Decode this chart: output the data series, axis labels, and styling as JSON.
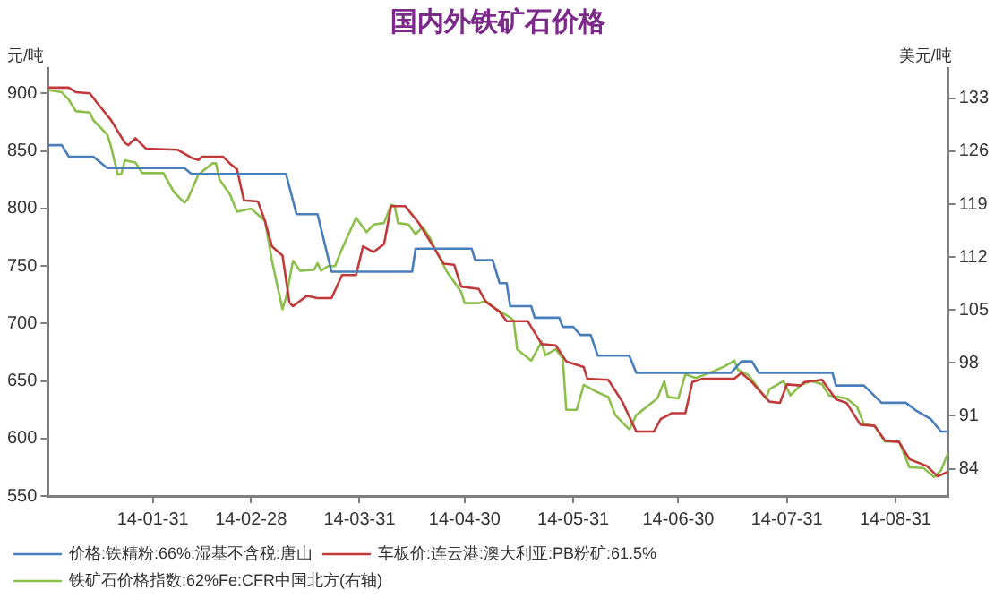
{
  "chart_data": {
    "type": "line",
    "title": "国内外铁矿石价格",
    "ylabel": "元/吨",
    "y2label": "美元/吨",
    "xlim": [
      "--01-01",
      "--09-15"
    ],
    "xticks": [
      {
        "value": "--01-31",
        "label": "14-01-31"
      },
      {
        "value": "--02-28",
        "label": "14-02-28"
      },
      {
        "value": "--03-31",
        "label": "14-03-31"
      },
      {
        "value": "--04-30",
        "label": "14-04-30"
      },
      {
        "value": "--05-31",
        "label": "14-05-31"
      },
      {
        "value": "--06-30",
        "label": "14-06-30"
      },
      {
        "value": "--07-31",
        "label": "14-07-31"
      },
      {
        "value": "--08-31",
        "label": "14-08-31"
      }
    ],
    "ylim": [
      550,
      922
    ],
    "yticks": [
      550,
      600,
      650,
      700,
      750,
      800,
      850,
      900
    ],
    "y2lim": [
      80.4,
      137
    ],
    "y2ticks": [
      84,
      91,
      98,
      105,
      112,
      119,
      126,
      133
    ],
    "grid": false,
    "legend": "bottom",
    "marker": "none",
    "line_style": "solid",
    "series": [
      {
        "name": "价格:铁精粉:66%:湿基不含税:唐山",
        "color": "#4a7ebb",
        "x": [
          "--01-01",
          "--01-05",
          "--01-07",
          "--01-14",
          "--01-18",
          "--02-09",
          "--02-11",
          "--03-10",
          "--03-13",
          "--03-19",
          "--03-23",
          "--04-15",
          "--04-16",
          "--05-02",
          "--05-03",
          "--05-08",
          "--05-10",
          "--05-12",
          "--05-13",
          "--05-19",
          "--05-20",
          "--05-27",
          "--05-28",
          "--05-31",
          "--06-02",
          "--06-05",
          "--06-07",
          "--06-16",
          "--06-18",
          "--07-15",
          "--07-18",
          "--07-21",
          "--07-23",
          "--08-13",
          "--08-14",
          "--08-22",
          "--08-27",
          "--09-03",
          "--09-06",
          "--09-10",
          "--09-13",
          "--09-15"
        ],
        "values": [
          855,
          855,
          845,
          845,
          835,
          835,
          830,
          830,
          795,
          795,
          745,
          745,
          765,
          765,
          755,
          755,
          735,
          735,
          715,
          715,
          705,
          705,
          697,
          697,
          690,
          690,
          672,
          672,
          657,
          657,
          667,
          667,
          657,
          657,
          646,
          646,
          631,
          631,
          624,
          617,
          606,
          606
        ]
      },
      {
        "name": "车板价:连云港:澳大利亚:PB粉矿:61.5%",
        "color": "#c0393b",
        "x": [
          "--01-01",
          "--01-07",
          "--01-09",
          "--01-13",
          "--01-15",
          "--01-19",
          "--01-23",
          "--01-24",
          "--01-26",
          "--01-29",
          "--02-07",
          "--02-11",
          "--02-13",
          "--02-14",
          "--02-20",
          "--02-22",
          "--02-24",
          "--02-26",
          "--03-02",
          "--03-04",
          "--03-06",
          "--03-09",
          "--03-11",
          "--03-12",
          "--03-16",
          "--03-19",
          "--03-23",
          "--03-26",
          "--03-30",
          "--04-01",
          "--04-04",
          "--04-07",
          "--04-09",
          "--04-13",
          "--04-17",
          "--04-19",
          "--04-24",
          "--04-27",
          "--04-29",
          "--05-04",
          "--05-06",
          "--05-10",
          "--05-12",
          "--05-18",
          "--05-22",
          "--05-26",
          "--05-29",
          "--06-03",
          "--06-04",
          "--06-10",
          "--06-14",
          "--06-18",
          "--06-23",
          "--06-25",
          "--06-27",
          "--06-28",
          "--07-02",
          "--07-04",
          "--07-07",
          "--07-16",
          "--07-18",
          "--07-21",
          "--07-26",
          "--07-29",
          "--07-31",
          "--08-04",
          "--08-05",
          "--08-10",
          "--08-14",
          "--08-17",
          "--08-21",
          "--08-25",
          "--08-28",
          "--09-01",
          "--09-04",
          "--09-09",
          "--09-12",
          "--09-15"
        ],
        "values": [
          905,
          905,
          901,
          900,
          892,
          877,
          857,
          855,
          861,
          852,
          851,
          844,
          842,
          845,
          845,
          839,
          834,
          807,
          806,
          789,
          767,
          759,
          718,
          715,
          724,
          722,
          722,
          742,
          742,
          767,
          762,
          769,
          802,
          802,
          787,
          777,
          752,
          751,
          732,
          730,
          719,
          710,
          702,
          702,
          682,
          681,
          667,
          662,
          652,
          651,
          632,
          606,
          606,
          617,
          620,
          622,
          622,
          649,
          652,
          652,
          657,
          649,
          632,
          631,
          647,
          646,
          649,
          651,
          634,
          631,
          612,
          611,
          598,
          597,
          582,
          576,
          567,
          571
        ]
      },
      {
        "name": "铁矿石价格指数:62%Fe:CFR中国北方(右轴)",
        "color": "#8cbf4b",
        "axis": "y2",
        "x": [
          "--01-01",
          "--01-05",
          "--01-07",
          "--01-09",
          "--01-13",
          "--01-14",
          "--01-18",
          "--01-19",
          "--01-21",
          "--01-22",
          "--01-23",
          "--01-26",
          "--01-28",
          "--02-03",
          "--02-06",
          "--02-09",
          "--02-10",
          "--02-13",
          "--02-17",
          "--02-18",
          "--02-19",
          "--02-22",
          "--02-24",
          "--02-28",
          "--03-04",
          "--03-06",
          "--03-09",
          "--03-10",
          "--03-12",
          "--03-14",
          "--03-18",
          "--03-19",
          "--03-20",
          "--03-22",
          "--03-24",
          "--03-26",
          "--03-30",
          "--04-02",
          "--04-04",
          "--04-07",
          "--04-09",
          "--04-10",
          "--04-11",
          "--04-14",
          "--04-16",
          "--04-18",
          "--04-20",
          "--04-22",
          "--04-25",
          "--04-29",
          "--04-30",
          "--05-04",
          "--05-06",
          "--05-09",
          "--05-13",
          "--05-14",
          "--05-15",
          "--05-19",
          "--05-22",
          "--05-23",
          "--05-26",
          "--05-28",
          "--05-29",
          "--06-01",
          "--06-03",
          "--06-07",
          "--06-10",
          "--06-12",
          "--06-16",
          "--06-18",
          "--06-24",
          "--06-26",
          "--06-27",
          "--06-30",
          "--07-02",
          "--07-05",
          "--07-09",
          "--07-13",
          "--07-16",
          "--07-17",
          "--07-20",
          "--07-25",
          "--07-26",
          "--07-30",
          "--08-01",
          "--08-04",
          "--08-07",
          "--08-10",
          "--08-12",
          "--08-17",
          "--08-20",
          "--08-22",
          "--08-25",
          "--08-28",
          "--09-01",
          "--09-04",
          "--09-08",
          "--09-11",
          "--09-13",
          "--09-15"
        ],
        "values": [
          134.1,
          133.8,
          132.8,
          131.3,
          131.1,
          130.1,
          128.2,
          126.7,
          122.9,
          123,
          124.8,
          124.5,
          123.1,
          123.1,
          120.6,
          119.2,
          119.7,
          122.9,
          124.4,
          124.4,
          122.3,
          120.3,
          118,
          118.4,
          116.8,
          111.5,
          105.1,
          106.6,
          111.5,
          110.2,
          110.3,
          111.2,
          110.2,
          110.8,
          110.8,
          113.1,
          117.2,
          115.3,
          116.3,
          116.5,
          118.9,
          118.8,
          116.5,
          116.3,
          115,
          116,
          114.6,
          112.7,
          110,
          107.4,
          105.9,
          105.9,
          106.2,
          105.1,
          104,
          103.6,
          99.8,
          98.3,
          100.8,
          99,
          99.8,
          98.6,
          91.8,
          91.8,
          95.1,
          94.1,
          93.5,
          91.1,
          89.2,
          91.1,
          93.3,
          95.6,
          93.5,
          93.3,
          96.5,
          96,
          96.7,
          97.5,
          98.3,
          97.1,
          96.4,
          93.3,
          94.5,
          95.6,
          93.7,
          95.1,
          95.6,
          95.2,
          93.7,
          93.3,
          92.2,
          89.9,
          89.7,
          87.6,
          87.6,
          84.2,
          84.1,
          82.9,
          83.8,
          86.1
        ]
      }
    ]
  }
}
